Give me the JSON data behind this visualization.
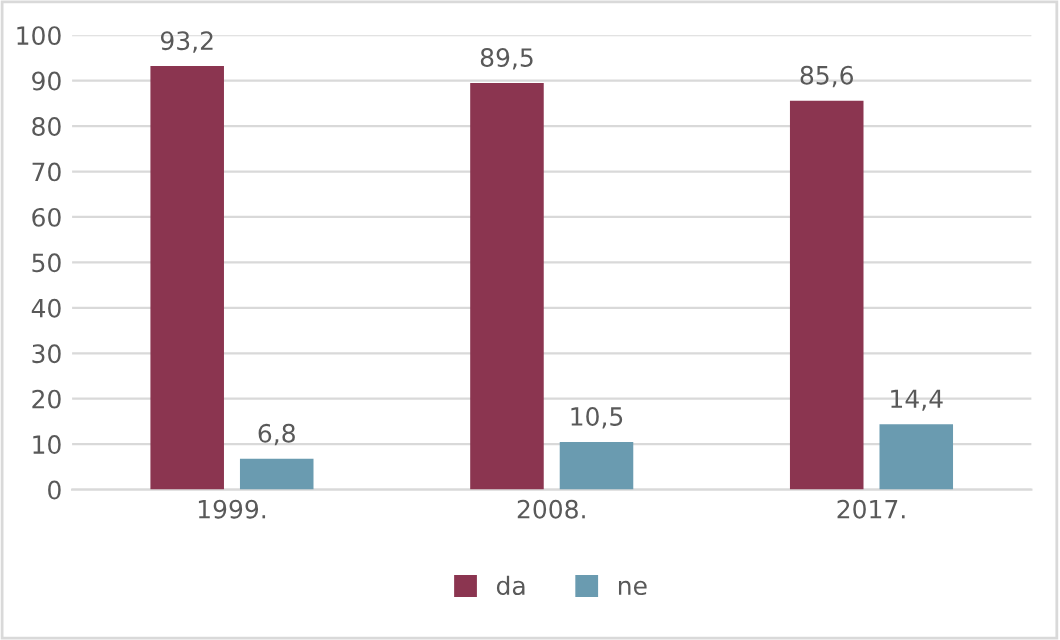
{
  "chart_data": {
    "type": "bar",
    "categories": [
      "1999.",
      "2008.",
      "2017."
    ],
    "series": [
      {
        "name": "da",
        "color": "#8b3550",
        "values": [
          93.2,
          89.5,
          85.6
        ],
        "value_labels": [
          "93,2",
          "89,5",
          "85,6"
        ]
      },
      {
        "name": "ne",
        "color": "#6a9bb0",
        "values": [
          6.8,
          10.5,
          14.4
        ],
        "value_labels": [
          "6,8",
          "10,5",
          "14,4"
        ]
      }
    ],
    "ylim": [
      0,
      100
    ],
    "yticks": [
      0,
      10,
      20,
      30,
      40,
      50,
      60,
      70,
      80,
      90,
      100
    ],
    "grid": "y",
    "legend": "bottom"
  }
}
